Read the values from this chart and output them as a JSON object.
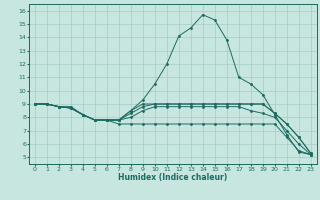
{
  "title": "",
  "xlabel": "Humidex (Indice chaleur)",
  "background_color": "#c8e6e0",
  "grid_color": "#a8ccc8",
  "line_color": "#1a6b60",
  "xlim": [
    -0.5,
    23.5
  ],
  "ylim": [
    4.5,
    16.5
  ],
  "xticks": [
    0,
    1,
    2,
    3,
    4,
    5,
    6,
    7,
    8,
    9,
    10,
    11,
    12,
    13,
    14,
    15,
    16,
    17,
    18,
    19,
    20,
    21,
    22,
    23
  ],
  "yticks": [
    5,
    6,
    7,
    8,
    9,
    10,
    11,
    12,
    13,
    14,
    15,
    16
  ],
  "lines": [
    {
      "x": [
        0,
        1,
        2,
        3,
        4,
        5,
        6,
        7,
        8,
        9,
        10,
        11,
        12,
        13,
        14,
        15,
        16,
        17,
        18,
        19,
        20,
        21,
        22,
        23
      ],
      "y": [
        9,
        9,
        8.8,
        8.8,
        8.2,
        7.8,
        7.8,
        7.8,
        8.5,
        9.3,
        10.5,
        12.0,
        14.1,
        14.7,
        15.7,
        15.3,
        13.8,
        11.0,
        10.5,
        9.7,
        8.2,
        6.7,
        5.4,
        5.2
      ]
    },
    {
      "x": [
        0,
        1,
        2,
        3,
        4,
        5,
        6,
        7,
        8,
        9,
        10,
        11,
        12,
        13,
        14,
        15,
        16,
        17,
        18,
        19,
        20,
        21,
        22,
        23
      ],
      "y": [
        9,
        9,
        8.8,
        8.7,
        8.2,
        7.8,
        7.8,
        7.8,
        8.5,
        9.0,
        9.0,
        9.0,
        9.0,
        9.0,
        9.0,
        9.0,
        9.0,
        9.0,
        9.0,
        9.0,
        8.3,
        7.5,
        6.5,
        5.3
      ]
    },
    {
      "x": [
        0,
        1,
        2,
        3,
        4,
        5,
        6,
        7,
        8,
        9,
        10,
        11,
        12,
        13,
        14,
        15,
        16,
        17,
        18,
        19,
        20,
        21,
        22,
        23
      ],
      "y": [
        9,
        9,
        8.8,
        8.7,
        8.2,
        7.8,
        7.8,
        7.8,
        8.3,
        8.8,
        9.0,
        9.0,
        9.0,
        9.0,
        9.0,
        9.0,
        9.0,
        9.0,
        9.0,
        9.0,
        8.3,
        7.5,
        6.5,
        5.3
      ]
    },
    {
      "x": [
        0,
        1,
        2,
        3,
        4,
        5,
        6,
        7,
        8,
        9,
        10,
        11,
        12,
        13,
        14,
        15,
        16,
        17,
        18,
        19,
        20,
        21,
        22,
        23
      ],
      "y": [
        9,
        9,
        8.8,
        8.7,
        8.2,
        7.8,
        7.8,
        7.8,
        8.0,
        8.5,
        8.8,
        8.8,
        8.8,
        8.8,
        8.8,
        8.8,
        8.8,
        8.8,
        8.5,
        8.3,
        8.0,
        7.0,
        6.0,
        5.2
      ]
    },
    {
      "x": [
        0,
        1,
        2,
        3,
        4,
        5,
        6,
        7,
        8,
        9,
        10,
        11,
        12,
        13,
        14,
        15,
        16,
        17,
        18,
        19,
        20,
        21,
        22,
        23
      ],
      "y": [
        9,
        9,
        8.8,
        8.7,
        8.2,
        7.8,
        7.8,
        7.5,
        7.5,
        7.5,
        7.5,
        7.5,
        7.5,
        7.5,
        7.5,
        7.5,
        7.5,
        7.5,
        7.5,
        7.5,
        7.5,
        6.5,
        5.5,
        5.2
      ]
    }
  ]
}
